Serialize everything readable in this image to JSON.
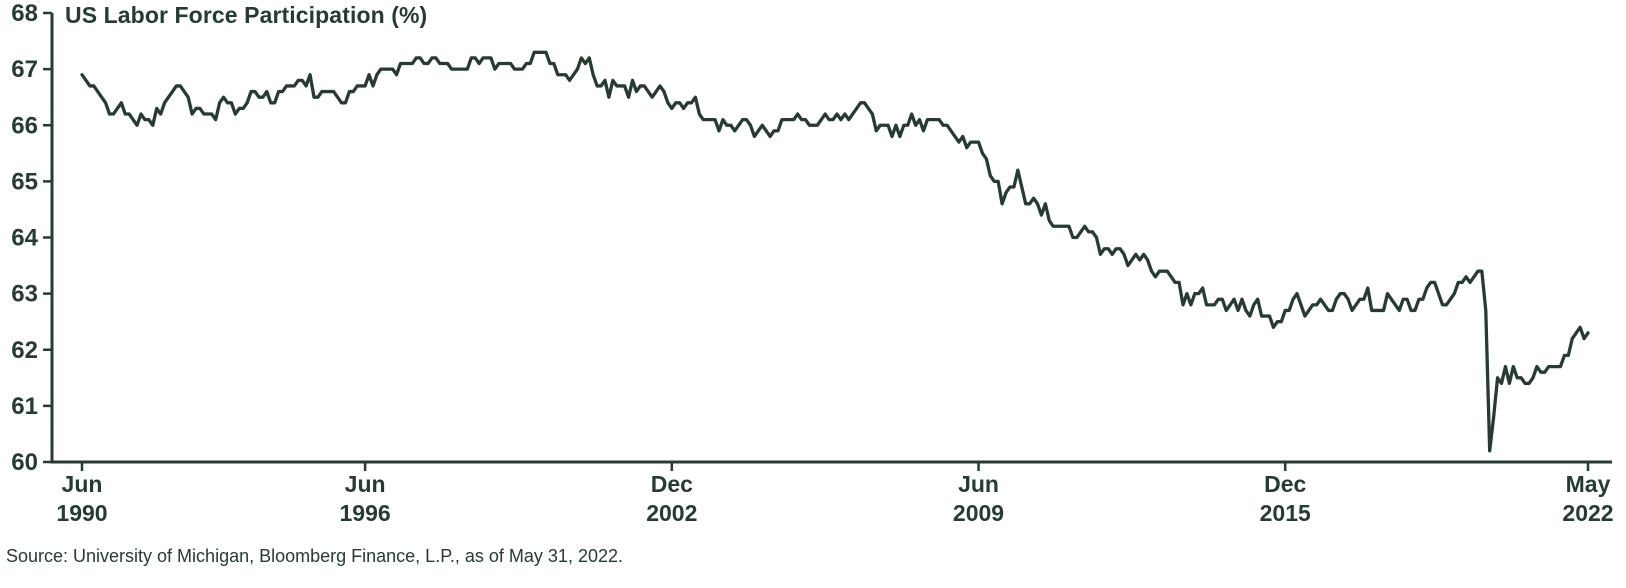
{
  "colors": {
    "ink": "#263c31",
    "background": "#ffffff"
  },
  "source_note": "Source: University of Michigan, Bloomberg Finance, L.P., as of May 31, 2022.",
  "chart_data": {
    "type": "line",
    "title": "US Labor Force Participation (%)",
    "xlabel": "",
    "ylabel": "",
    "grid": false,
    "legend": false,
    "line_color": "#263c31",
    "ylim": [
      60,
      68
    ],
    "y_ticks": [
      60,
      61,
      62,
      63,
      64,
      65,
      66,
      67,
      68
    ],
    "x_axis": {
      "frequency": "monthly",
      "start": "Jun 1990",
      "end": "May 2022",
      "tick_labels": [
        {
          "line1": "Jun",
          "line2": "1990",
          "month_index": 0
        },
        {
          "line1": "Jun",
          "line2": "1996",
          "month_index": 72
        },
        {
          "line1": "Dec",
          "line2": "2002",
          "month_index": 150
        },
        {
          "line1": "Jun",
          "line2": "2009",
          "month_index": 228
        },
        {
          "line1": "Dec",
          "line2": "2015",
          "month_index": 306
        },
        {
          "line1": "May",
          "line2": "2022",
          "month_index": 383
        }
      ]
    },
    "series": [
      {
        "name": "US Labor Force Participation (%)",
        "start": "Jun 1990",
        "values": [
          66.9,
          66.8,
          66.7,
          66.7,
          66.6,
          66.5,
          66.4,
          66.2,
          66.2,
          66.3,
          66.4,
          66.2,
          66.2,
          66.1,
          66.0,
          66.2,
          66.1,
          66.1,
          66.0,
          66.3,
          66.2,
          66.4,
          66.5,
          66.6,
          66.7,
          66.7,
          66.6,
          66.5,
          66.2,
          66.3,
          66.3,
          66.2,
          66.2,
          66.2,
          66.1,
          66.4,
          66.5,
          66.4,
          66.4,
          66.2,
          66.3,
          66.3,
          66.4,
          66.6,
          66.6,
          66.5,
          66.5,
          66.6,
          66.4,
          66.4,
          66.6,
          66.6,
          66.7,
          66.7,
          66.7,
          66.8,
          66.8,
          66.7,
          66.9,
          66.5,
          66.5,
          66.6,
          66.6,
          66.6,
          66.6,
          66.5,
          66.4,
          66.4,
          66.6,
          66.6,
          66.7,
          66.7,
          66.7,
          66.9,
          66.7,
          66.9,
          67.0,
          67.0,
          67.0,
          67.0,
          66.9,
          67.1,
          67.1,
          67.1,
          67.1,
          67.2,
          67.2,
          67.1,
          67.1,
          67.2,
          67.2,
          67.1,
          67.1,
          67.1,
          67.0,
          67.0,
          67.0,
          67.0,
          67.0,
          67.2,
          67.2,
          67.1,
          67.2,
          67.2,
          67.2,
          67.0,
          67.1,
          67.1,
          67.1,
          67.1,
          67.0,
          67.0,
          67.0,
          67.1,
          67.1,
          67.3,
          67.3,
          67.3,
          67.3,
          67.1,
          67.1,
          66.9,
          66.9,
          66.9,
          66.8,
          66.9,
          67.0,
          67.2,
          67.1,
          67.2,
          66.9,
          66.7,
          66.7,
          66.8,
          66.5,
          66.8,
          66.7,
          66.7,
          66.7,
          66.5,
          66.8,
          66.6,
          66.7,
          66.7,
          66.6,
          66.5,
          66.6,
          66.7,
          66.6,
          66.4,
          66.3,
          66.4,
          66.4,
          66.3,
          66.4,
          66.4,
          66.5,
          66.2,
          66.1,
          66.1,
          66.1,
          66.1,
          65.9,
          66.1,
          66.0,
          66.0,
          65.9,
          66.0,
          66.1,
          66.1,
          66.0,
          65.8,
          65.9,
          66.0,
          65.9,
          65.8,
          65.9,
          65.9,
          66.1,
          66.1,
          66.1,
          66.1,
          66.2,
          66.1,
          66.1,
          66.0,
          66.0,
          66.0,
          66.1,
          66.2,
          66.1,
          66.1,
          66.2,
          66.1,
          66.2,
          66.1,
          66.2,
          66.3,
          66.4,
          66.4,
          66.3,
          66.2,
          65.9,
          66.0,
          66.0,
          66.0,
          65.8,
          66.0,
          65.8,
          66.0,
          66.0,
          66.2,
          66.0,
          66.1,
          65.9,
          66.1,
          66.1,
          66.1,
          66.1,
          66.0,
          66.0,
          65.9,
          65.8,
          65.7,
          65.8,
          65.6,
          65.7,
          65.7,
          65.7,
          65.5,
          65.4,
          65.1,
          65.0,
          65.0,
          64.6,
          64.8,
          64.9,
          64.9,
          65.2,
          64.9,
          64.6,
          64.6,
          64.7,
          64.6,
          64.4,
          64.6,
          64.3,
          64.2,
          64.2,
          64.2,
          64.2,
          64.2,
          64.0,
          64.0,
          64.1,
          64.2,
          64.1,
          64.1,
          64.0,
          63.7,
          63.8,
          63.8,
          63.7,
          63.8,
          63.8,
          63.7,
          63.5,
          63.6,
          63.7,
          63.6,
          63.7,
          63.6,
          63.4,
          63.3,
          63.4,
          63.4,
          63.4,
          63.3,
          63.2,
          63.2,
          62.8,
          63.0,
          62.8,
          63.0,
          63.0,
          63.1,
          62.8,
          62.8,
          62.8,
          62.9,
          62.9,
          62.7,
          62.8,
          62.9,
          62.7,
          62.9,
          62.7,
          62.6,
          62.8,
          62.9,
          62.6,
          62.6,
          62.6,
          62.4,
          62.5,
          62.5,
          62.7,
          62.7,
          62.9,
          63.0,
          62.8,
          62.6,
          62.7,
          62.8,
          62.8,
          62.9,
          62.8,
          62.7,
          62.7,
          62.9,
          63.0,
          63.0,
          62.9,
          62.7,
          62.8,
          62.9,
          62.9,
          63.1,
          62.7,
          62.7,
          62.7,
          62.7,
          63.0,
          62.9,
          62.8,
          62.7,
          62.9,
          62.9,
          62.7,
          62.7,
          62.9,
          62.9,
          63.1,
          63.2,
          63.2,
          63.0,
          62.8,
          62.8,
          62.9,
          63.0,
          63.2,
          63.2,
          63.3,
          63.2,
          63.3,
          63.4,
          63.4,
          62.7,
          60.2,
          60.8,
          61.5,
          61.4,
          61.7,
          61.4,
          61.7,
          61.5,
          61.5,
          61.4,
          61.4,
          61.5,
          61.7,
          61.6,
          61.6,
          61.7,
          61.7,
          61.7,
          61.7,
          61.9,
          61.9,
          62.2,
          62.3,
          62.4,
          62.2,
          62.3
        ]
      }
    ]
  }
}
